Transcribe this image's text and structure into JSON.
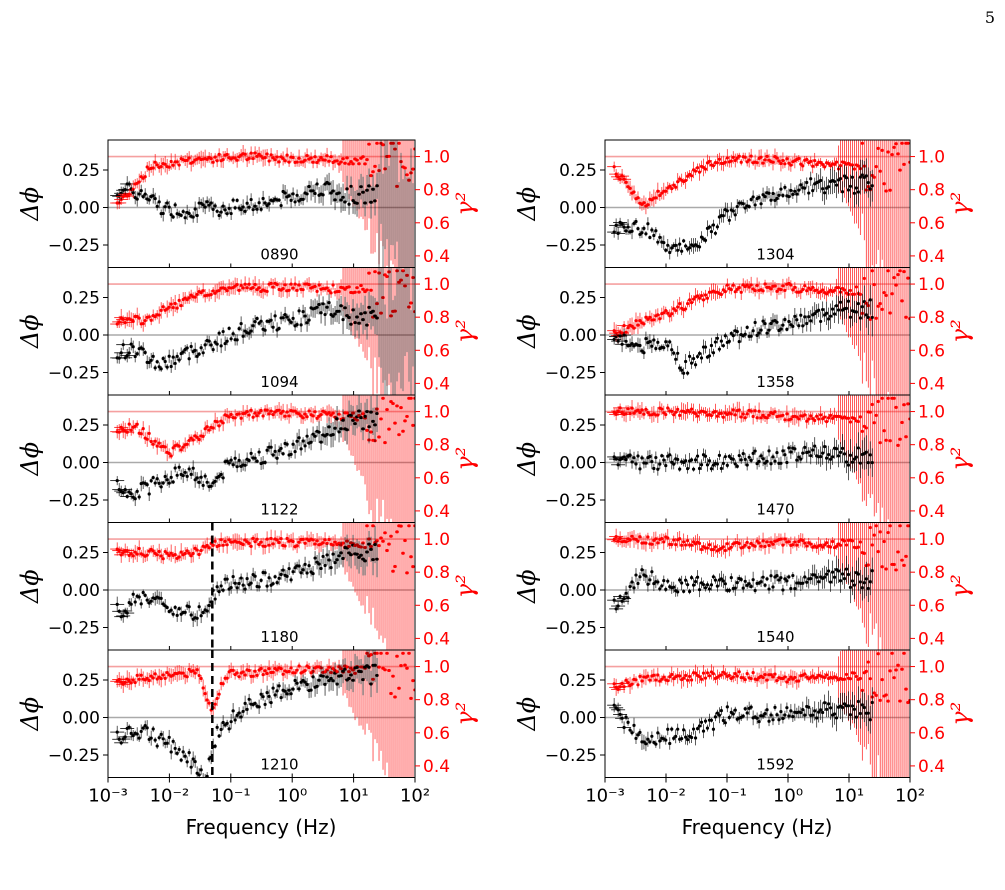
{
  "page": {
    "number": "5"
  },
  "colors": {
    "phase": "#000000",
    "coherence": "#ff0000",
    "zero_line": "#aaaaaa",
    "unity_line": "#f5a0a0",
    "marker_line": "#000000"
  },
  "axes_text": {
    "left_label": "Δϕ",
    "right_label": "γ²",
    "xlabel": "Frequency (Hz)",
    "left_ticks": [
      "0.25",
      "0.00",
      "−0.25"
    ],
    "right_ticks": [
      "1.0",
      "0.8",
      "0.6",
      "0.4"
    ],
    "x_ticks": [
      "10⁻³",
      "10⁻²",
      "10⁻¹",
      "10⁰",
      "10¹",
      "10²"
    ]
  },
  "chart_data": {
    "type": "scatter",
    "layout": "5 rows x 2 columns of panels",
    "x_scale": "log",
    "xlim": [
      0.001,
      100
    ],
    "ylim_left": [
      -0.4,
      0.45
    ],
    "ylim_right": [
      0.33,
      1.1
    ],
    "xlabel": "Frequency (Hz)",
    "ylabel_left": "Δϕ",
    "ylabel_right": "γ²",
    "panels": [
      {
        "label": "0890",
        "column": 0,
        "row": 0,
        "phase_trend": [
          [
            0.0015,
            0.12
          ],
          [
            0.003,
            0.1
          ],
          [
            0.01,
            -0.02
          ],
          [
            0.05,
            -0.01
          ],
          [
            0.3,
            0.03
          ],
          [
            1,
            0.07
          ],
          [
            3,
            0.14
          ],
          [
            6,
            0.08
          ]
        ],
        "coherence_trend": [
          [
            0.0015,
            0.72
          ],
          [
            0.005,
            0.94
          ],
          [
            0.02,
            0.98
          ],
          [
            0.2,
            1.0
          ],
          [
            1,
            0.99
          ],
          [
            5,
            0.98
          ]
        ],
        "marker_x": null
      },
      {
        "label": "1094",
        "column": 0,
        "row": 1,
        "phase_trend": [
          [
            0.0015,
            -0.11
          ],
          [
            0.003,
            -0.1
          ],
          [
            0.007,
            -0.2
          ],
          [
            0.02,
            -0.12
          ],
          [
            0.05,
            -0.05
          ],
          [
            0.2,
            0.05
          ],
          [
            1,
            0.1
          ],
          [
            4,
            0.18
          ],
          [
            8,
            0.12
          ]
        ],
        "coherence_trend": [
          [
            0.0015,
            0.78
          ],
          [
            0.004,
            0.78
          ],
          [
            0.01,
            0.86
          ],
          [
            0.03,
            0.93
          ],
          [
            0.1,
            0.98
          ],
          [
            1,
            0.98
          ],
          [
            5,
            0.97
          ]
        ],
        "marker_x": null
      },
      {
        "label": "1122",
        "column": 0,
        "row": 2,
        "phase_trend": [
          [
            0.0015,
            -0.16
          ],
          [
            0.003,
            -0.2
          ],
          [
            0.007,
            -0.12
          ],
          [
            0.02,
            -0.05
          ],
          [
            0.05,
            -0.15
          ],
          [
            0.1,
            0.0
          ],
          [
            0.5,
            0.06
          ],
          [
            2,
            0.15
          ],
          [
            8,
            0.28
          ]
        ],
        "coherence_trend": [
          [
            0.0015,
            0.9
          ],
          [
            0.003,
            0.9
          ],
          [
            0.01,
            0.75
          ],
          [
            0.03,
            0.85
          ],
          [
            0.1,
            0.98
          ],
          [
            1,
            0.99
          ],
          [
            6,
            0.97
          ]
        ],
        "marker_x": null
      },
      {
        "label": "1180",
        "column": 0,
        "row": 3,
        "phase_trend": [
          [
            0.0015,
            -0.14
          ],
          [
            0.004,
            -0.03
          ],
          [
            0.01,
            -0.12
          ],
          [
            0.025,
            -0.16
          ],
          [
            0.045,
            -0.08
          ],
          [
            0.07,
            0.03
          ],
          [
            0.3,
            0.06
          ],
          [
            2,
            0.15
          ],
          [
            8,
            0.24
          ]
        ],
        "coherence_trend": [
          [
            0.0015,
            0.92
          ],
          [
            0.004,
            0.92
          ],
          [
            0.01,
            0.9
          ],
          [
            0.03,
            0.93
          ],
          [
            0.06,
            0.98
          ],
          [
            1,
            0.98
          ],
          [
            6,
            0.97
          ]
        ],
        "marker_x": 0.05
      },
      {
        "label": "1210",
        "column": 0,
        "row": 4,
        "phase_trend": [
          [
            0.0015,
            -0.12
          ],
          [
            0.004,
            -0.1
          ],
          [
            0.01,
            -0.18
          ],
          [
            0.025,
            -0.3
          ],
          [
            0.04,
            -0.4
          ],
          [
            0.06,
            -0.1
          ],
          [
            0.2,
            0.1
          ],
          [
            1,
            0.2
          ],
          [
            6,
            0.28
          ]
        ],
        "coherence_trend": [
          [
            0.0015,
            0.91
          ],
          [
            0.004,
            0.93
          ],
          [
            0.01,
            0.95
          ],
          [
            0.03,
            0.97
          ],
          [
            0.05,
            0.72
          ],
          [
            0.08,
            0.95
          ],
          [
            1,
            0.98
          ],
          [
            5,
            0.98
          ]
        ],
        "marker_x": 0.05
      },
      {
        "label": "1304",
        "column": 1,
        "row": 0,
        "phase_trend": [
          [
            0.0015,
            -0.13
          ],
          [
            0.005,
            -0.14
          ],
          [
            0.015,
            -0.3
          ],
          [
            0.04,
            -0.2
          ],
          [
            0.1,
            -0.05
          ],
          [
            0.5,
            0.08
          ],
          [
            2,
            0.14
          ],
          [
            6,
            0.15
          ]
        ],
        "coherence_trend": [
          [
            0.0015,
            0.92
          ],
          [
            0.004,
            0.7
          ],
          [
            0.01,
            0.8
          ],
          [
            0.05,
            0.96
          ],
          [
            0.2,
            0.99
          ],
          [
            1,
            0.97
          ],
          [
            4,
            0.95
          ]
        ],
        "marker_x": null
      },
      {
        "label": "1358",
        "column": 1,
        "row": 1,
        "phase_trend": [
          [
            0.0015,
            0.0
          ],
          [
            0.003,
            -0.08
          ],
          [
            0.01,
            -0.05
          ],
          [
            0.02,
            -0.22
          ],
          [
            0.05,
            -0.1
          ],
          [
            0.2,
            0.02
          ],
          [
            1,
            0.07
          ],
          [
            4,
            0.13
          ],
          [
            6,
            0.18
          ]
        ],
        "coherence_trend": [
          [
            0.0015,
            0.7
          ],
          [
            0.004,
            0.78
          ],
          [
            0.01,
            0.82
          ],
          [
            0.03,
            0.9
          ],
          [
            0.1,
            0.97
          ],
          [
            1,
            0.98
          ],
          [
            5,
            0.96
          ]
        ],
        "marker_x": null
      },
      {
        "label": "1470",
        "column": 1,
        "row": 2,
        "phase_trend": [
          [
            0.0015,
            0.01
          ],
          [
            0.01,
            0.0
          ],
          [
            0.05,
            0.0
          ],
          [
            0.3,
            0.03
          ],
          [
            1,
            0.05
          ],
          [
            4,
            0.08
          ],
          [
            8,
            0.04
          ]
        ],
        "coherence_trend": [
          [
            0.0015,
            1.0
          ],
          [
            0.01,
            1.0
          ],
          [
            0.1,
            0.99
          ],
          [
            1,
            0.97
          ],
          [
            5,
            0.96
          ]
        ],
        "marker_x": null
      },
      {
        "label": "1540",
        "column": 1,
        "row": 3,
        "phase_trend": [
          [
            0.0015,
            -0.09
          ],
          [
            0.004,
            0.1
          ],
          [
            0.01,
            0.03
          ],
          [
            0.05,
            0.04
          ],
          [
            0.3,
            0.04
          ],
          [
            1,
            0.05
          ],
          [
            5,
            0.08
          ]
        ],
        "coherence_trend": [
          [
            0.0015,
            1.0
          ],
          [
            0.01,
            0.99
          ],
          [
            0.05,
            0.95
          ],
          [
            0.2,
            0.96
          ],
          [
            1,
            0.98
          ],
          [
            5,
            0.97
          ]
        ],
        "marker_x": null
      },
      {
        "label": "1592",
        "column": 1,
        "row": 4,
        "phase_trend": [
          [
            0.0015,
            0.03
          ],
          [
            0.004,
            -0.15
          ],
          [
            0.01,
            -0.13
          ],
          [
            0.03,
            -0.1
          ],
          [
            0.1,
            0.02
          ],
          [
            0.5,
            0.02
          ],
          [
            2,
            0.04
          ],
          [
            6,
            0.05
          ]
        ],
        "coherence_trend": [
          [
            0.0015,
            0.88
          ],
          [
            0.004,
            0.92
          ],
          [
            0.01,
            0.93
          ],
          [
            0.05,
            0.95
          ],
          [
            0.3,
            0.94
          ],
          [
            1,
            0.93
          ],
          [
            5,
            0.94
          ]
        ],
        "marker_x": null
      }
    ]
  }
}
